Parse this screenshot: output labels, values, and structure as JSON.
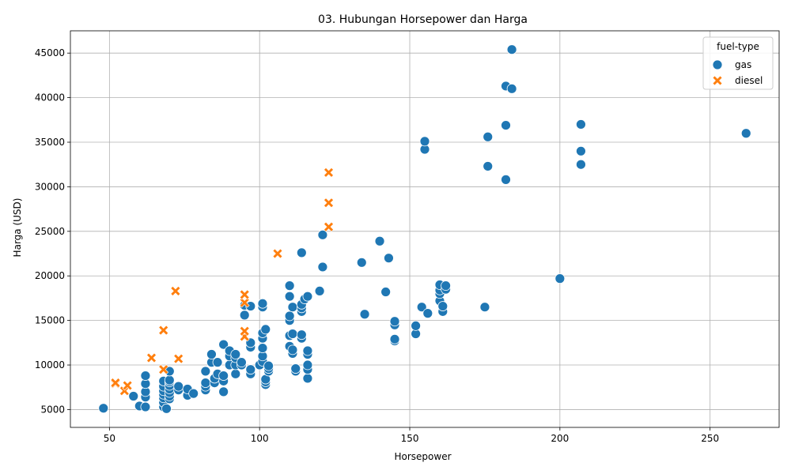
{
  "chart_data": {
    "type": "scatter",
    "title": "03. Hubungan Horsepower dan Harga",
    "xlabel": "Horsepower",
    "ylabel": "Harga (USD)",
    "xlim": [
      37,
      273
    ],
    "ylim": [
      3000,
      47500
    ],
    "xticks": [
      50,
      100,
      150,
      200,
      250
    ],
    "yticks": [
      5000,
      10000,
      15000,
      20000,
      25000,
      30000,
      35000,
      40000,
      45000
    ],
    "grid": true,
    "legend": {
      "title": "fuel-type",
      "placement": "top-right"
    },
    "series": [
      {
        "name": "gas",
        "marker": "circle",
        "color": "#1f77b4",
        "points": [
          [
            48,
            5150
          ],
          [
            58,
            6500
          ],
          [
            60,
            5400
          ],
          [
            62,
            5300
          ],
          [
            62,
            6400
          ],
          [
            62,
            7000
          ],
          [
            62,
            7900
          ],
          [
            62,
            8800
          ],
          [
            68,
            5300
          ],
          [
            68,
            5800
          ],
          [
            68,
            6300
          ],
          [
            68,
            6700
          ],
          [
            68,
            7100
          ],
          [
            68,
            7600
          ],
          [
            68,
            8200
          ],
          [
            69,
            5100
          ],
          [
            70,
            6200
          ],
          [
            70,
            6500
          ],
          [
            70,
            6900
          ],
          [
            70,
            7300
          ],
          [
            70,
            7700
          ],
          [
            70,
            8100
          ],
          [
            70,
            8300
          ],
          [
            70,
            9300
          ],
          [
            73,
            7200
          ],
          [
            73,
            7600
          ],
          [
            76,
            6600
          ],
          [
            76,
            7300
          ],
          [
            78,
            6800
          ],
          [
            82,
            7200
          ],
          [
            82,
            7600
          ],
          [
            82,
            8000
          ],
          [
            82,
            9300
          ],
          [
            84,
            10300
          ],
          [
            84,
            11200
          ],
          [
            85,
            8000
          ],
          [
            85,
            8500
          ],
          [
            86,
            9000
          ],
          [
            86,
            10300
          ],
          [
            88,
            7000
          ],
          [
            88,
            8200
          ],
          [
            88,
            8800
          ],
          [
            88,
            12300
          ],
          [
            90,
            10000
          ],
          [
            90,
            11000
          ],
          [
            90,
            11600
          ],
          [
            92,
            9000
          ],
          [
            92,
            10000
          ],
          [
            92,
            10800
          ],
          [
            92,
            11200
          ],
          [
            94,
            10000
          ],
          [
            94,
            10300
          ],
          [
            95,
            15600
          ],
          [
            95,
            16700
          ],
          [
            97,
            9000
          ],
          [
            97,
            9500
          ],
          [
            97,
            12000
          ],
          [
            97,
            12500
          ],
          [
            97,
            16600
          ],
          [
            100,
            10000
          ],
          [
            101,
            10400
          ],
          [
            101,
            11000
          ],
          [
            101,
            11900
          ],
          [
            101,
            13000
          ],
          [
            101,
            13600
          ],
          [
            101,
            16500
          ],
          [
            101,
            16900
          ],
          [
            102,
            7800
          ],
          [
            102,
            8100
          ],
          [
            102,
            8400
          ],
          [
            102,
            14000
          ],
          [
            103,
            9300
          ],
          [
            103,
            9600
          ],
          [
            103,
            9900
          ],
          [
            110,
            12100
          ],
          [
            110,
            13300
          ],
          [
            110,
            15000
          ],
          [
            110,
            15500
          ],
          [
            110,
            17700
          ],
          [
            110,
            18900
          ],
          [
            111,
            11300
          ],
          [
            111,
            11700
          ],
          [
            111,
            13500
          ],
          [
            111,
            16500
          ],
          [
            112,
            9300
          ],
          [
            112,
            9600
          ],
          [
            114,
            13000
          ],
          [
            114,
            13400
          ],
          [
            114,
            16000
          ],
          [
            114,
            16400
          ],
          [
            114,
            16800
          ],
          [
            114,
            22600
          ],
          [
            115,
            17400
          ],
          [
            116,
            8500
          ],
          [
            116,
            9500
          ],
          [
            116,
            10000
          ],
          [
            116,
            11200
          ],
          [
            116,
            11600
          ],
          [
            116,
            17700
          ],
          [
            120,
            18300
          ],
          [
            121,
            21000
          ],
          [
            121,
            24600
          ],
          [
            134,
            21500
          ],
          [
            135,
            15700
          ],
          [
            140,
            23900
          ],
          [
            142,
            18200
          ],
          [
            143,
            22000
          ],
          [
            145,
            12700
          ],
          [
            145,
            12900
          ],
          [
            145,
            14500
          ],
          [
            145,
            14900
          ],
          [
            152,
            13500
          ],
          [
            152,
            14400
          ],
          [
            154,
            16500
          ],
          [
            155,
            34200
          ],
          [
            155,
            35100
          ],
          [
            156,
            15800
          ],
          [
            160,
            17200
          ],
          [
            160,
            18000
          ],
          [
            160,
            18400
          ],
          [
            160,
            19000
          ],
          [
            161,
            16000
          ],
          [
            161,
            16600
          ],
          [
            162,
            18500
          ],
          [
            162,
            18900
          ],
          [
            175,
            16500
          ],
          [
            176,
            32300
          ],
          [
            176,
            35600
          ],
          [
            182,
            30800
          ],
          [
            182,
            36900
          ],
          [
            182,
            41300
          ],
          [
            184,
            41000
          ],
          [
            184,
            45400
          ],
          [
            200,
            19700
          ],
          [
            207,
            32500
          ],
          [
            207,
            34000
          ],
          [
            207,
            37000
          ],
          [
            262,
            36000
          ]
        ]
      },
      {
        "name": "diesel",
        "marker": "x",
        "color": "#ff7f0e",
        "points": [
          [
            52,
            7900
          ],
          [
            52,
            8000
          ],
          [
            55,
            7100
          ],
          [
            56,
            7700
          ],
          [
            64,
            10800
          ],
          [
            68,
            13900
          ],
          [
            68,
            9500
          ],
          [
            72,
            18300
          ],
          [
            73,
            10700
          ],
          [
            95,
            13200
          ],
          [
            95,
            13800
          ],
          [
            95,
            17000
          ],
          [
            95,
            17900
          ],
          [
            106,
            22500
          ],
          [
            123,
            25500
          ],
          [
            123,
            28200
          ],
          [
            123,
            31600
          ]
        ]
      }
    ]
  }
}
